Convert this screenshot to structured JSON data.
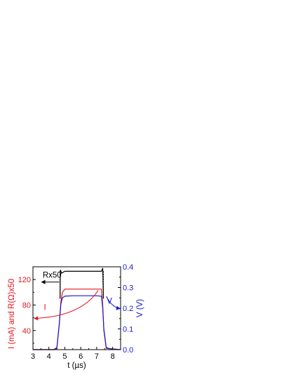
{
  "chart_data": {
    "type": "line",
    "xlabel": "t (µs)",
    "ylabel_left": "I (mA)  and  R(Ω)x50",
    "ylabel_right": "V (V)",
    "xlim": [
      3,
      8.5
    ],
    "ylim_left": [
      10,
      140
    ],
    "ylim_right": [
      0.0,
      0.4
    ],
    "x_ticks": [
      3,
      4,
      5,
      6,
      7,
      8
    ],
    "y_ticks_left": [
      40,
      80,
      120
    ],
    "y_ticks_right": [
      0.0,
      0.1,
      0.2,
      0.3,
      0.4
    ],
    "y_tick_labels_right": [
      "0.0",
      "0.1",
      "0.2",
      "0.3",
      "0.4"
    ],
    "colors": {
      "left_axis": "#e8141c",
      "right_axis": "#1a1ad0",
      "axis": "#000000"
    },
    "annotations": [
      {
        "label": "Rx50",
        "series": "R",
        "arrow_direction": "left"
      },
      {
        "label": "I",
        "series": "I",
        "arrow_direction": "left"
      },
      {
        "label": "V",
        "series": "V",
        "arrow_direction": "right"
      }
    ],
    "series": [
      {
        "name": "Rx50",
        "axis": "left",
        "color": "#000000",
        "x": [
          4.7,
          4.72,
          4.8,
          5.0,
          5.5,
          6.0,
          6.5,
          7.0,
          7.3,
          7.38,
          7.42
        ],
        "y": [
          90,
          135,
          130,
          133,
          133,
          133,
          133,
          133,
          133,
          138,
          90
        ]
      },
      {
        "name": "I",
        "axis": "left",
        "color": "#e8141c",
        "x": [
          3.0,
          4.3,
          4.5,
          4.65,
          4.75,
          4.85,
          5.0,
          5.2,
          6.0,
          7.0,
          7.3,
          7.38,
          7.45,
          7.6,
          8.5
        ],
        "y": [
          10,
          10,
          12,
          50,
          85,
          100,
          105,
          105,
          105,
          105,
          105,
          80,
          40,
          12,
          10
        ]
      },
      {
        "name": "V",
        "axis": "right",
        "color": "#1a1ad0",
        "x": [
          3.0,
          4.3,
          4.5,
          4.65,
          4.75,
          4.85,
          5.0,
          5.5,
          6.0,
          6.5,
          7.0,
          7.3,
          7.38,
          7.45,
          7.6,
          7.8,
          8.0,
          8.5
        ],
        "y": [
          0.0,
          0.0,
          0.01,
          0.12,
          0.22,
          0.25,
          0.258,
          0.26,
          0.26,
          0.26,
          0.26,
          0.258,
          0.2,
          0.1,
          0.01,
          0.005,
          0.003,
          0.0
        ]
      }
    ]
  }
}
